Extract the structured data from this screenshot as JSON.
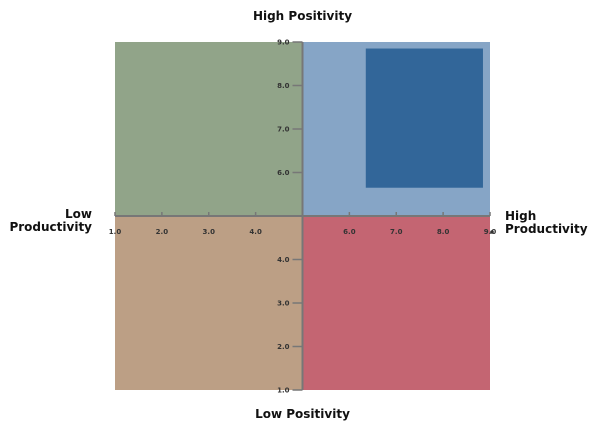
{
  "labels": {
    "top": "High Positivity",
    "bottom": "Low Positivity",
    "left": "Low Productivity",
    "right": "High Productivity"
  },
  "colors": {
    "top_left": "#91a489",
    "top_right": "#86a5c6",
    "bottom_left": "#bc9f85",
    "bottom_right": "#c46572",
    "highlight": "#326699",
    "axis": "#777777"
  },
  "chart_data": {
    "type": "quadrant",
    "x_axis": {
      "range": [
        1.0,
        9.0
      ],
      "center": 5.0,
      "ticks": [
        1.0,
        2.0,
        3.0,
        4.0,
        6.0,
        7.0,
        8.0,
        9.0
      ],
      "tick_labels": [
        "1.0",
        "2.0",
        "3.0",
        "4.0",
        "6.0",
        "7.0",
        "8.0",
        "9.0"
      ]
    },
    "y_axis": {
      "range": [
        1.0,
        9.0
      ],
      "center": 5.0,
      "ticks": [
        9.0,
        8.0,
        7.0,
        6.0,
        4.0,
        3.0,
        2.0,
        1.0
      ],
      "tick_labels": [
        "9.0",
        "8.0",
        "7.0",
        "6.0",
        "4.0",
        "3.0",
        "2.0",
        "1.0"
      ]
    },
    "quadrants": [
      {
        "id": "top_left",
        "x": [
          1.0,
          5.0
        ],
        "y": [
          5.0,
          9.0
        ]
      },
      {
        "id": "top_right",
        "x": [
          5.0,
          9.0
        ],
        "y": [
          5.0,
          9.0
        ]
      },
      {
        "id": "bottom_left",
        "x": [
          1.0,
          5.0
        ],
        "y": [
          1.0,
          5.0
        ]
      },
      {
        "id": "bottom_right",
        "x": [
          5.0,
          9.0
        ],
        "y": [
          1.0,
          5.0
        ]
      }
    ],
    "highlight": {
      "x": [
        6.35,
        8.85
      ],
      "y": [
        5.65,
        8.85
      ]
    }
  }
}
